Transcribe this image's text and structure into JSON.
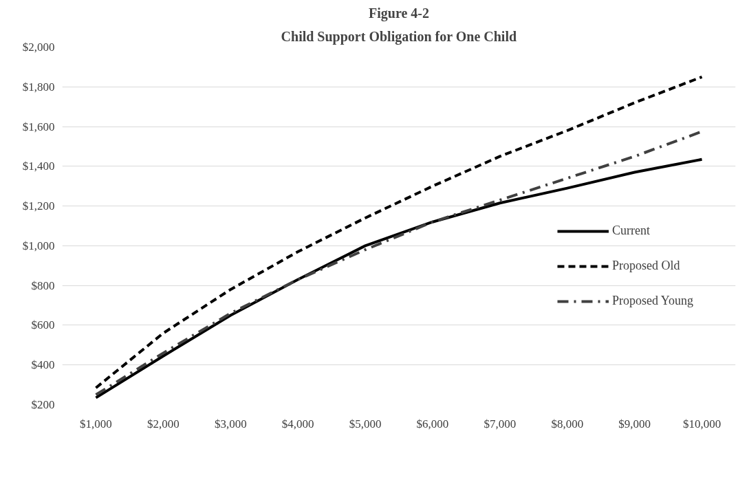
{
  "chart_data": {
    "type": "line",
    "title": "Figure 4-2",
    "subtitle": "Child Support Obligation for One Child",
    "categories": [
      "$1,000",
      "$2,000",
      "$3,000",
      "$4,000",
      "$5,000",
      "$6,000",
      "$7,000",
      "$8,000",
      "$9,000",
      "$10,000"
    ],
    "series": [
      {
        "name": "Current",
        "color": "#000000",
        "line_style": "solid",
        "values": [
          235,
          445,
          650,
          830,
          1000,
          1120,
          1215,
          1290,
          1370,
          1435
        ]
      },
      {
        "name": "Proposed Old",
        "color": "#000000",
        "line_style": "dashed",
        "values": [
          285,
          560,
          780,
          970,
          1140,
          1300,
          1450,
          1580,
          1720,
          1850
        ]
      },
      {
        "name": "Proposed Young",
        "color": "#404040",
        "line_style": "dashdot",
        "values": [
          250,
          460,
          660,
          830,
          980,
          1120,
          1230,
          1340,
          1450,
          1575
        ]
      }
    ],
    "ylim": [
      200,
      2000
    ],
    "yticks": [
      {
        "value": 200,
        "label": "$200"
      },
      {
        "value": 400,
        "label": "$400"
      },
      {
        "value": 600,
        "label": "$600"
      },
      {
        "value": 800,
        "label": "$800"
      },
      {
        "value": 1000,
        "label": "$1,000"
      },
      {
        "value": 1200,
        "label": "$1,200"
      },
      {
        "value": 1400,
        "label": "$1,400"
      },
      {
        "value": 1600,
        "label": "$1,600"
      },
      {
        "value": 1800,
        "label": "$1,800"
      },
      {
        "value": 2000,
        "label": "$2,000"
      }
    ],
    "grid": "y",
    "legend": "right",
    "marker": "none"
  }
}
